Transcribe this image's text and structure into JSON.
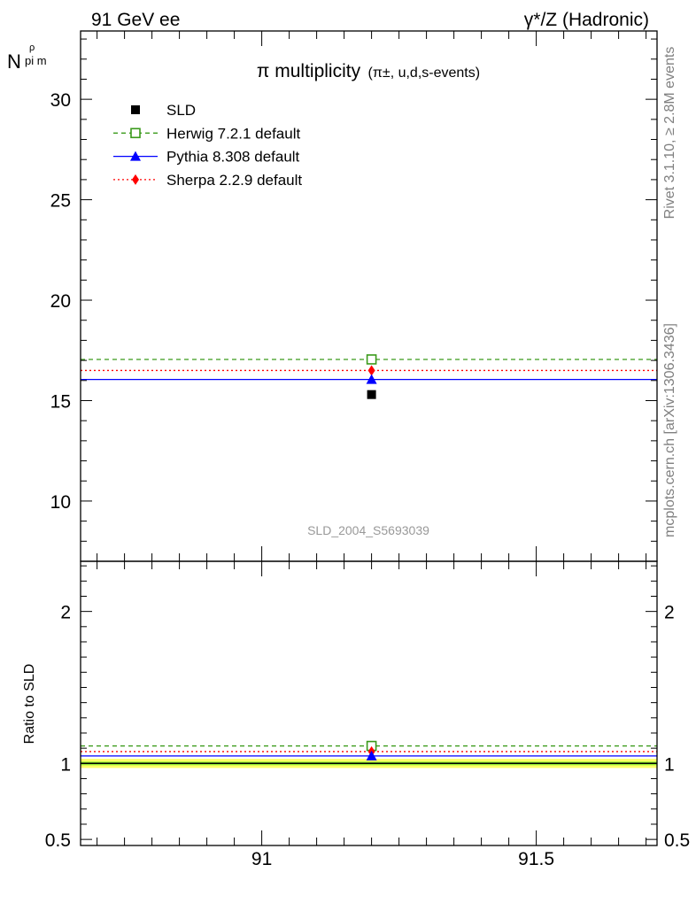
{
  "header": {
    "left": "91 GeV ee",
    "right": "γ*/Z (Hadronic)"
  },
  "side_labels": {
    "rivet": "Rivet 3.1.10, ≥ 2.8M events",
    "mcplots": "mcplots.cern.ch [arXiv:1306.3436]"
  },
  "colors": {
    "data": "#000000",
    "herwig": "#3a9a1a",
    "pythia": "#0000ff",
    "sherpa": "#ff0000",
    "band_outer": "#ffff66",
    "band_inner": "#99ee33"
  },
  "chart_data": [
    {
      "type": "scatter",
      "panel": "main",
      "title_main": "π multiplicity",
      "title_detail": "(π±, u,d,s-events)",
      "ylabel_main": "N",
      "ylabel_sup": "ρ",
      "ylabel_sub": "pi m",
      "watermark": "SLD_2004_S5693039",
      "xlim": [
        90.67,
        91.72
      ],
      "ylim": [
        7.0,
        33.4
      ],
      "yticks": [
        10,
        15,
        20,
        25,
        30
      ],
      "ytick_labels": [
        "10",
        "15",
        "20",
        "25",
        "30"
      ],
      "legend_position": "top-left",
      "series": [
        {
          "name": "SLD",
          "key": "data",
          "style": "marker",
          "x": 91.2,
          "y": 15.3
        },
        {
          "name": "Herwig 7.2.1 default",
          "key": "herwig",
          "style": "dashed",
          "x": 91.2,
          "y": 17.05
        },
        {
          "name": "Pythia 8.308 default",
          "key": "pythia",
          "style": "solid",
          "x": 91.2,
          "y": 16.05
        },
        {
          "name": "Sherpa 2.2.9 default",
          "key": "sherpa",
          "style": "dotted",
          "x": 91.2,
          "y": 16.5
        }
      ]
    },
    {
      "type": "scatter",
      "panel": "ratio",
      "ylabel": "Ratio to SLD",
      "xlim": [
        90.67,
        91.72
      ],
      "ylim": [
        0.46,
        2.33
      ],
      "yticks": [
        0.5,
        1,
        2
      ],
      "ytick_labels": [
        "0.5",
        "1",
        "2"
      ],
      "xticks": [
        91,
        91.5
      ],
      "xtick_labels": [
        "91",
        "91.5"
      ],
      "band": {
        "outer": 0.03,
        "inner": 0.012
      },
      "series": [
        {
          "name": "Herwig 7.2.1 default",
          "key": "herwig",
          "x": 91.2,
          "y": 1.115
        },
        {
          "name": "Pythia 8.308 default",
          "key": "pythia",
          "x": 91.2,
          "y": 1.049
        },
        {
          "name": "Sherpa 2.2.9 default",
          "key": "sherpa",
          "x": 91.2,
          "y": 1.078
        }
      ]
    }
  ]
}
